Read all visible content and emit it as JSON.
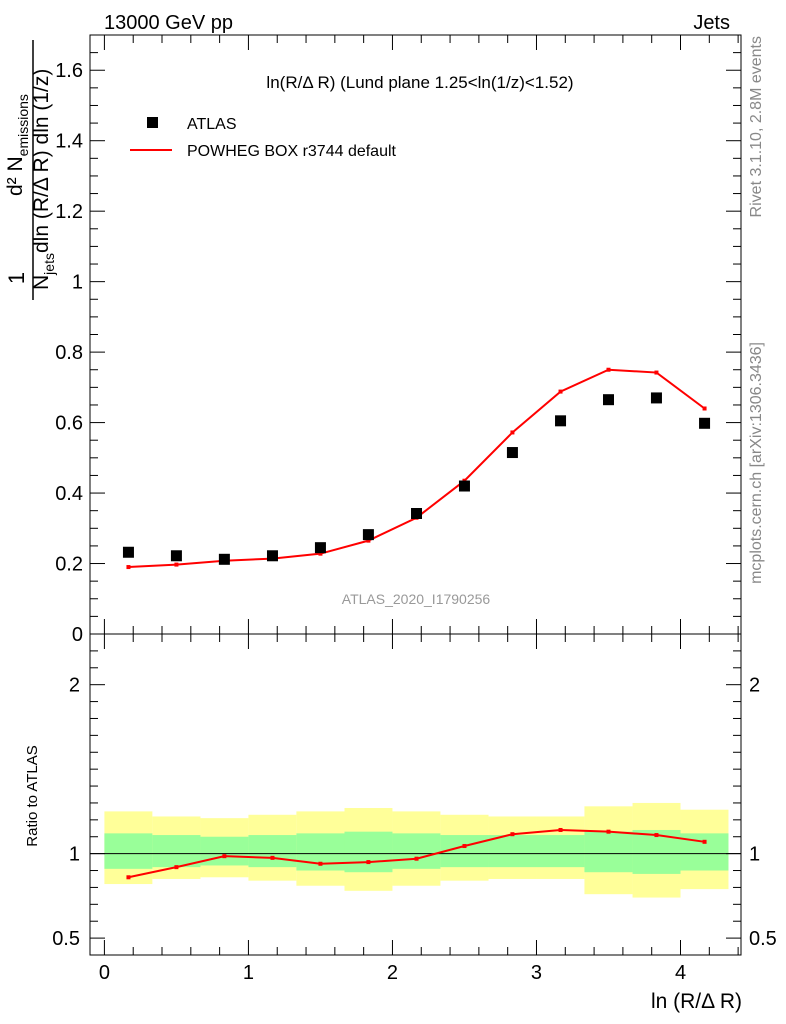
{
  "header": {
    "left": "13000 GeV pp",
    "right": "Jets"
  },
  "side_texts": {
    "rivet": "Rivet 3.1.10,  2.8M events",
    "mcplots": "mcplots.cern.ch [arXiv:1306.3436]"
  },
  "chart_data": [
    {
      "type": "scatter",
      "title": "ln(R/Δ R) (Lund plane 1.25<ln(1/z)<1.52)",
      "watermark": "ATLAS_2020_I1790256",
      "ylabel": "1/N_jets d²N_emissions/(dln(R/ΔR) dln(1/z))",
      "ylabel_parts": {
        "one": "1",
        "num": "d² N",
        "num_sub": "emissions",
        "den_n": "N",
        "den_sub": "jets",
        "den_rest": "dln (R/Δ R) dln (1/z)"
      },
      "xlim": [
        -0.1,
        4.42
      ],
      "ylim": [
        0,
        1.7
      ],
      "yticks": [
        0,
        0.2,
        0.4,
        0.6,
        0.8,
        1,
        1.2,
        1.4,
        1.6
      ],
      "ytick_labels": [
        "0",
        "0.2",
        "0.4",
        "0.6",
        "0.8",
        "1",
        "1.2",
        "1.4",
        "1.6"
      ],
      "legend": {
        "position": "top-left",
        "entries": [
          "ATLAS",
          "POWHEG BOX r3744 default"
        ]
      },
      "x": [
        0.167,
        0.5,
        0.833,
        1.167,
        1.5,
        1.833,
        2.167,
        2.5,
        2.833,
        3.167,
        3.5,
        3.833,
        4.167
      ],
      "series": [
        {
          "name": "ATLAS",
          "style": "markers",
          "color": "#000000",
          "values": [
            0.232,
            0.222,
            0.212,
            0.222,
            0.245,
            0.282,
            0.342,
            0.42,
            0.515,
            0.605,
            0.665,
            0.67,
            0.598
          ]
        },
        {
          "name": "POWHEG BOX r3744 default",
          "style": "line",
          "color": "#ff0000",
          "values": [
            0.19,
            0.197,
            0.208,
            0.214,
            0.228,
            0.265,
            0.33,
            0.435,
            0.572,
            0.688,
            0.75,
            0.742,
            0.64
          ]
        }
      ]
    },
    {
      "type": "line",
      "ylabel": "Ratio to ATLAS",
      "xlabel": "ln (R/Δ R)",
      "xlim": [
        -0.1,
        4.42
      ],
      "ylim": [
        0.4,
        2.3
      ],
      "xticks": [
        0,
        1,
        2,
        3,
        4
      ],
      "xtick_labels": [
        "0",
        "1",
        "2",
        "3",
        "4"
      ],
      "yticks": [
        0.5,
        1,
        2
      ],
      "ytick_labels": [
        "0.5",
        "1",
        "2"
      ],
      "x": [
        0.167,
        0.5,
        0.833,
        1.167,
        1.5,
        1.833,
        2.167,
        2.5,
        2.833,
        3.167,
        3.5,
        3.833,
        4.167
      ],
      "bin_edges": [
        0,
        0.333,
        0.667,
        1,
        1.333,
        1.667,
        2,
        2.333,
        2.667,
        3,
        3.333,
        3.667,
        4,
        4.333
      ],
      "band_colors": {
        "outer": "#ffff99",
        "inner": "#99ff99"
      },
      "band_outer": {
        "low": [
          0.82,
          0.85,
          0.86,
          0.84,
          0.81,
          0.78,
          0.81,
          0.84,
          0.85,
          0.85,
          0.76,
          0.74,
          0.79
        ],
        "high": [
          1.25,
          1.22,
          1.21,
          1.23,
          1.25,
          1.27,
          1.25,
          1.23,
          1.22,
          1.22,
          1.28,
          1.3,
          1.26
        ]
      },
      "band_inner": {
        "low": [
          0.91,
          0.92,
          0.93,
          0.92,
          0.9,
          0.89,
          0.91,
          0.92,
          0.92,
          0.92,
          0.89,
          0.88,
          0.9
        ],
        "high": [
          1.12,
          1.11,
          1.1,
          1.11,
          1.12,
          1.13,
          1.12,
          1.11,
          1.11,
          1.11,
          1.13,
          1.14,
          1.12
        ]
      },
      "series": [
        {
          "name": "POWHEG BOX r3744 default",
          "color": "#ff0000",
          "values": [
            0.86,
            0.92,
            0.985,
            0.975,
            0.94,
            0.95,
            0.97,
            1.045,
            1.115,
            1.14,
            1.13,
            1.11,
            1.07
          ]
        }
      ]
    }
  ]
}
